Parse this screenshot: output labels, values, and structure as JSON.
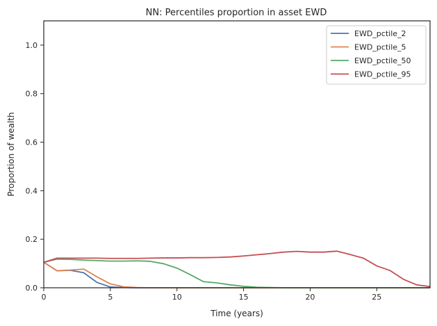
{
  "chart_data": {
    "type": "line",
    "title": "NN: Percentiles proportion in asset EWD",
    "xlabel": "Time (years)",
    "ylabel": "Proportion of wealth",
    "xlim": [
      0,
      29
    ],
    "ylim": [
      0,
      1.1
    ],
    "xticks": [
      0,
      5,
      10,
      15,
      20,
      25
    ],
    "yticks": [
      0.0,
      0.2,
      0.4,
      0.6,
      0.8,
      1.0
    ],
    "ytick_labels": [
      "0.0",
      "0.2",
      "0.4",
      "0.6",
      "0.8",
      "1.0"
    ],
    "grid": false,
    "legend_position": "top-right",
    "x": [
      0,
      1,
      2,
      3,
      4,
      5,
      6,
      7,
      8,
      9,
      10,
      11,
      12,
      13,
      14,
      15,
      16,
      17,
      18,
      19,
      20,
      21,
      22,
      23,
      24,
      25,
      26,
      27,
      28,
      29
    ],
    "series": [
      {
        "name": "EWD_pctile_2",
        "color": "#4c72b0",
        "values": [
          0.105,
          0.07,
          0.072,
          0.062,
          0.022,
          0.003,
          0.001,
          0,
          0,
          0,
          0,
          0,
          0,
          0,
          0,
          0,
          0,
          0,
          0,
          0,
          0,
          0,
          0,
          0,
          0,
          0,
          0,
          0,
          0,
          0
        ]
      },
      {
        "name": "EWD_pctile_5",
        "color": "#dd8452",
        "values": [
          0.105,
          0.07,
          0.073,
          0.077,
          0.045,
          0.016,
          0.004,
          0.001,
          0,
          0,
          0,
          0,
          0,
          0,
          0,
          0,
          0,
          0,
          0,
          0,
          0,
          0,
          0,
          0,
          0,
          0,
          0,
          0,
          0,
          0
        ]
      },
      {
        "name": "EWD_pctile_50",
        "color": "#55a868",
        "values": [
          0.105,
          0.118,
          0.117,
          0.114,
          0.112,
          0.11,
          0.11,
          0.111,
          0.109,
          0.099,
          0.081,
          0.054,
          0.025,
          0.02,
          0.012,
          0.006,
          0.002,
          0.001,
          0,
          0,
          0,
          0,
          0,
          0,
          0,
          0,
          0,
          0,
          0,
          0
        ]
      },
      {
        "name": "EWD_pctile_95",
        "color": "#c44e52",
        "values": [
          0.105,
          0.122,
          0.122,
          0.122,
          0.122,
          0.121,
          0.121,
          0.121,
          0.122,
          0.123,
          0.123,
          0.124,
          0.124,
          0.125,
          0.127,
          0.131,
          0.136,
          0.141,
          0.147,
          0.15,
          0.147,
          0.147,
          0.151,
          0.137,
          0.122,
          0.09,
          0.071,
          0.035,
          0.012,
          0.005
        ]
      }
    ]
  }
}
